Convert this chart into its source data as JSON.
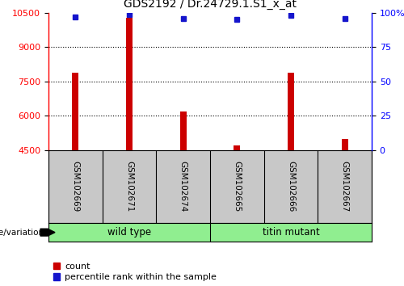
{
  "title": "GDS2192 / Dr.24729.1.S1_x_at",
  "samples": [
    "GSM102669",
    "GSM102671",
    "GSM102674",
    "GSM102665",
    "GSM102666",
    "GSM102667"
  ],
  "counts": [
    7900,
    10300,
    6200,
    4700,
    7900,
    5000
  ],
  "percentiles": [
    97,
    99,
    96,
    95,
    98,
    96
  ],
  "group_labels": [
    "wild type",
    "titin mutant"
  ],
  "group_boundary": 2.5,
  "ylim_left": [
    4500,
    10500
  ],
  "ylim_right": [
    0,
    100
  ],
  "yticks_left": [
    4500,
    6000,
    7500,
    9000,
    10500
  ],
  "yticks_right": [
    0,
    25,
    50,
    75,
    100
  ],
  "ytick_labels_right": [
    "0",
    "25",
    "50",
    "75",
    "100%"
  ],
  "bar_color": "#CC0000",
  "dot_color": "#1515CC",
  "background_color": "#FFFFFF",
  "label_area_color": "#C8C8C8",
  "group_area_color": "#90EE90",
  "legend_count_label": "count",
  "legend_percentile_label": "percentile rank within the sample",
  "genotype_label": "genotype/variation",
  "bar_width": 0.12
}
